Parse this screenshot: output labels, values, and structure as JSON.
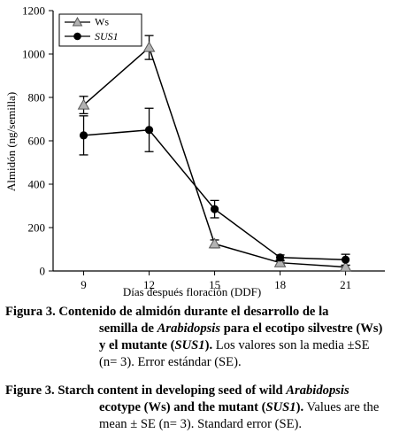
{
  "chart_data": {
    "type": "line",
    "x": [
      9,
      12,
      15,
      18,
      21
    ],
    "xlabel": "Días después floración (DDF)",
    "ylabel": "Almidón (ng/semilla)",
    "ylim": [
      0,
      1200
    ],
    "yticks": [
      0,
      200,
      400,
      600,
      800,
      1000,
      1200
    ],
    "grid": false,
    "legend_position": "top-left",
    "series": [
      {
        "name": "Ws",
        "marker": "triangle",
        "marker_color": "#b3b3b3",
        "values": [
          765,
          1030,
          125,
          38,
          18
        ],
        "error": [
          40,
          55,
          18,
          8,
          8
        ]
      },
      {
        "name": "SUS1",
        "name_style": "italic",
        "marker": "circle",
        "marker_color": "#000000",
        "values": [
          625,
          650,
          285,
          62,
          52
        ],
        "error": [
          90,
          100,
          40,
          12,
          25
        ]
      }
    ]
  },
  "caption_es": {
    "line1": {
      "label": "Figura 3.",
      "text": " Contenido de almidón durante el desarrollo de la"
    },
    "line2": {
      "pre": "semilla de ",
      "italic": "Arabidopsis",
      "post": " para el ecotipo silvestre (Ws)"
    },
    "line3": {
      "pre": "y el mutante (",
      "italic": "SUS1",
      "post": ").",
      "normal": " Los valores son la media ±SE"
    },
    "line4": {
      "normal": "(n= 3). Error estándar (SE)."
    }
  },
  "caption_en": {
    "line1": {
      "label": "Figure 3.",
      "text": " Starch content in developing seed of wild ",
      "italic": "Arabidopsis"
    },
    "line2": {
      "pre": "ecotype (Ws) and the mutant (",
      "italic": "SUS1",
      "post": ").",
      "normal": " Values are the"
    },
    "line3": {
      "normal": "mean ± SE (n= 3). Standard error (SE)."
    }
  }
}
